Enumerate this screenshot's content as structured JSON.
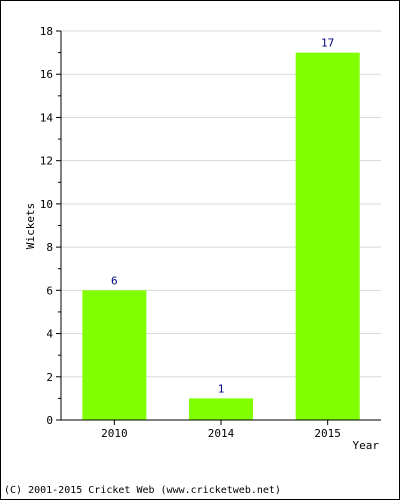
{
  "chart_data": {
    "type": "bar",
    "categories": [
      "2010",
      "2014",
      "2015"
    ],
    "values": [
      6,
      1,
      17
    ],
    "xlabel": "Year",
    "ylabel": "Wickets",
    "ylim": [
      0,
      18
    ],
    "yticks": [
      0,
      2,
      4,
      6,
      8,
      10,
      12,
      14,
      16,
      18
    ],
    "grid": true,
    "bar_color": "#80ff00",
    "value_label_color": "#000080",
    "grid_color": "#d9d9d9"
  },
  "footer": {
    "copyright": "(C) 2001-2015 Cricket Web (www.cricketweb.net)"
  }
}
